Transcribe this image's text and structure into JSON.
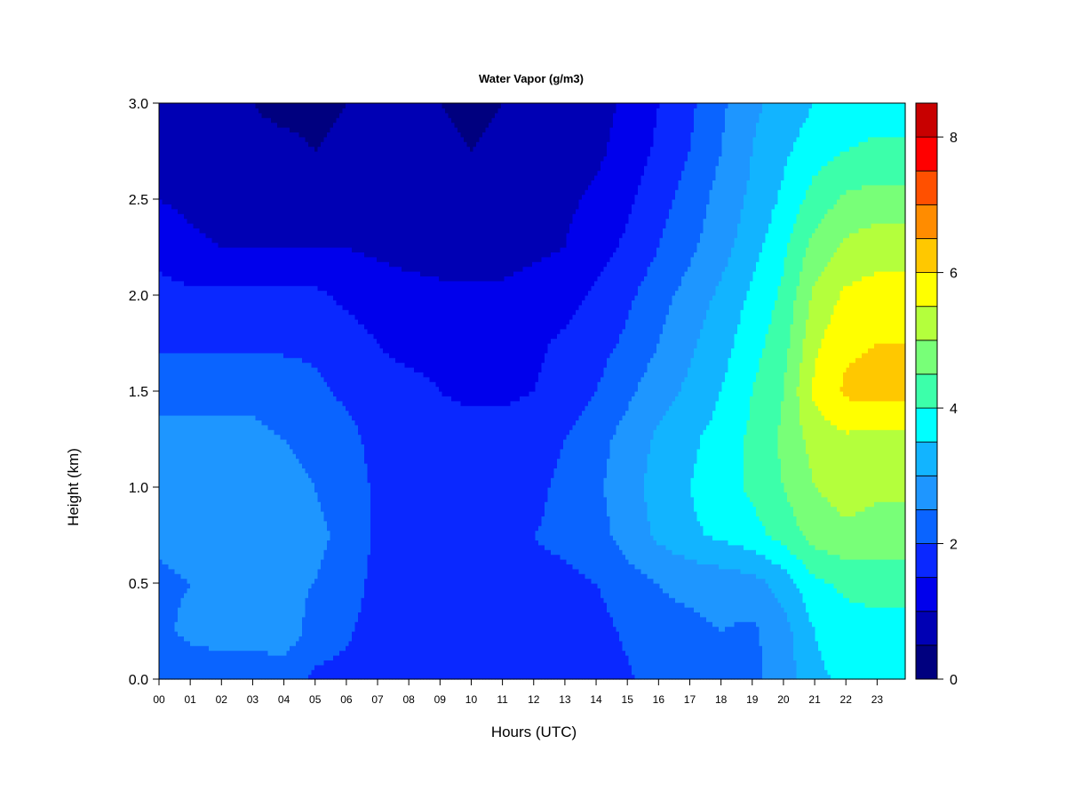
{
  "chart_data": {
    "type": "heatmap",
    "title": "Water Vapor (g/m3)",
    "xlabel": "Hours (UTC)",
    "ylabel": "Height (km)",
    "xlim": [
      0,
      23.9
    ],
    "ylim": [
      0.0,
      3.0
    ],
    "x_tick_labels": [
      "00",
      "01",
      "02",
      "03",
      "04",
      "05",
      "06",
      "07",
      "08",
      "09",
      "10",
      "11",
      "12",
      "13",
      "14",
      "15",
      "16",
      "17",
      "18",
      "19",
      "20",
      "21",
      "22",
      "23"
    ],
    "y_ticks": [
      0.0,
      0.5,
      1.0,
      1.5,
      2.0,
      2.5,
      3.0
    ],
    "y_tick_labels": [
      "0.0",
      "0.5",
      "1.0",
      "1.5",
      "2.0",
      "2.5",
      "3.0"
    ],
    "colorbar": {
      "levels": [
        0,
        0.5,
        1.0,
        1.5,
        2.0,
        2.5,
        3.0,
        3.5,
        4.0,
        4.5,
        5.0,
        5.5,
        6.0,
        6.5,
        7.0,
        7.5,
        8.0,
        8.5
      ],
      "colors": [
        "#00007f",
        "#0000b4",
        "#0000ec",
        "#0a28ff",
        "#0a64ff",
        "#1e96ff",
        "#12b4ff",
        "#00ffff",
        "#3cffaa",
        "#78ff78",
        "#b4ff3c",
        "#ffff00",
        "#ffc800",
        "#ff8c00",
        "#ff5000",
        "#ff0000",
        "#c80000",
        "#800000"
      ],
      "tick_values": [
        0,
        2,
        4,
        6,
        8
      ],
      "tick_labels": [
        "0",
        "2",
        "4",
        "6",
        "8"
      ]
    },
    "heights_km": [
      0.0,
      0.25,
      0.5,
      0.75,
      1.0,
      1.25,
      1.5,
      1.75,
      2.0,
      2.25,
      2.5,
      2.75,
      3.0
    ],
    "hours": [
      0,
      1,
      2,
      3,
      4,
      5,
      6,
      7,
      8,
      9,
      10,
      11,
      12,
      13,
      14,
      15,
      16,
      17,
      18,
      19,
      20,
      21,
      22,
      23
    ],
    "values": [
      [
        2.2,
        2.2,
        2.2,
        2.2,
        2.2,
        1.9,
        1.8,
        1.6,
        1.6,
        1.5,
        1.5,
        1.5,
        1.6,
        1.7,
        1.7,
        1.9,
        2.3,
        2.4,
        2.4,
        2.4,
        2.7,
        3.4,
        3.6,
        3.7
      ],
      [
        2.4,
        2.6,
        2.7,
        2.7,
        2.8,
        2.3,
        2.1,
        1.7,
        1.7,
        1.7,
        1.7,
        1.7,
        1.8,
        1.8,
        1.8,
        2.1,
        2.4,
        2.4,
        2.5,
        2.4,
        2.8,
        3.5,
        3.8,
        3.8
      ],
      [
        2.4,
        2.5,
        2.6,
        2.6,
        2.6,
        2.5,
        2.3,
        1.8,
        1.8,
        1.8,
        1.8,
        1.8,
        1.9,
        1.9,
        2.0,
        2.3,
        2.5,
        2.6,
        2.7,
        2.8,
        3.2,
        3.9,
        4.1,
        4.2
      ],
      [
        2.6,
        2.7,
        2.7,
        2.7,
        2.6,
        2.6,
        2.4,
        1.9,
        1.9,
        1.9,
        1.9,
        1.9,
        2.0,
        2.1,
        2.3,
        2.7,
        3.1,
        3.4,
        3.6,
        3.8,
        4.2,
        4.7,
        4.9,
        4.8
      ],
      [
        2.7,
        2.8,
        2.8,
        2.7,
        2.6,
        2.5,
        2.3,
        1.9,
        1.9,
        1.8,
        1.8,
        1.8,
        1.9,
        2.1,
        2.4,
        2.8,
        3.2,
        3.5,
        3.8,
        4.1,
        4.5,
        5.0,
        5.2,
        5.1
      ],
      [
        2.6,
        2.6,
        2.6,
        2.6,
        2.5,
        2.4,
        2.2,
        1.8,
        1.8,
        1.7,
        1.7,
        1.7,
        1.8,
        2.0,
        2.3,
        2.7,
        3.1,
        3.4,
        3.7,
        4.1,
        4.6,
        5.2,
        5.4,
        5.3
      ],
      [
        2.4,
        2.4,
        2.4,
        2.4,
        2.3,
        2.1,
        1.9,
        1.6,
        1.6,
        1.5,
        1.4,
        1.4,
        1.5,
        1.7,
        2.0,
        2.4,
        2.8,
        3.1,
        3.5,
        4.0,
        4.5,
        5.6,
        6.1,
        6.2
      ],
      [
        1.9,
        1.9,
        1.9,
        1.9,
        1.9,
        1.9,
        1.7,
        1.5,
        1.4,
        1.4,
        1.4,
        1.3,
        1.4,
        1.6,
        1.8,
        2.1,
        2.5,
        2.9,
        3.3,
        3.8,
        4.3,
        5.4,
        5.9,
        6.0
      ],
      [
        1.7,
        1.6,
        1.6,
        1.6,
        1.6,
        1.6,
        1.4,
        1.3,
        1.2,
        1.1,
        1.1,
        1.1,
        1.2,
        1.3,
        1.6,
        1.9,
        2.3,
        2.7,
        3.1,
        3.6,
        4.1,
        5.1,
        5.6,
        5.7
      ],
      [
        1.3,
        1.1,
        1.0,
        1.0,
        1.0,
        1.0,
        1.0,
        0.9,
        0.8,
        0.8,
        0.8,
        0.8,
        0.9,
        1.0,
        1.3,
        1.6,
        2.0,
        2.4,
        2.8,
        3.3,
        3.9,
        4.7,
        5.1,
        5.3
      ],
      [
        1.0,
        0.9,
        0.8,
        0.8,
        0.8,
        0.8,
        0.8,
        0.8,
        0.7,
        0.8,
        0.8,
        0.8,
        0.8,
        0.9,
        1.1,
        1.4,
        1.8,
        2.2,
        2.7,
        3.1,
        3.6,
        4.2,
        4.6,
        4.7
      ],
      [
        0.8,
        0.7,
        0.6,
        0.6,
        0.6,
        0.5,
        0.6,
        0.6,
        0.7,
        0.6,
        0.5,
        0.6,
        0.6,
        0.7,
        0.9,
        1.2,
        1.6,
        2.0,
        2.5,
        3.0,
        3.4,
        3.8,
        4.0,
        4.1
      ],
      [
        0.7,
        0.6,
        0.5,
        0.5,
        0.4,
        0.4,
        0.5,
        0.5,
        0.6,
        0.5,
        0.4,
        0.5,
        0.5,
        0.6,
        0.8,
        1.1,
        1.5,
        1.9,
        2.4,
        2.9,
        3.2,
        3.5,
        3.7,
        3.8
      ]
    ]
  }
}
